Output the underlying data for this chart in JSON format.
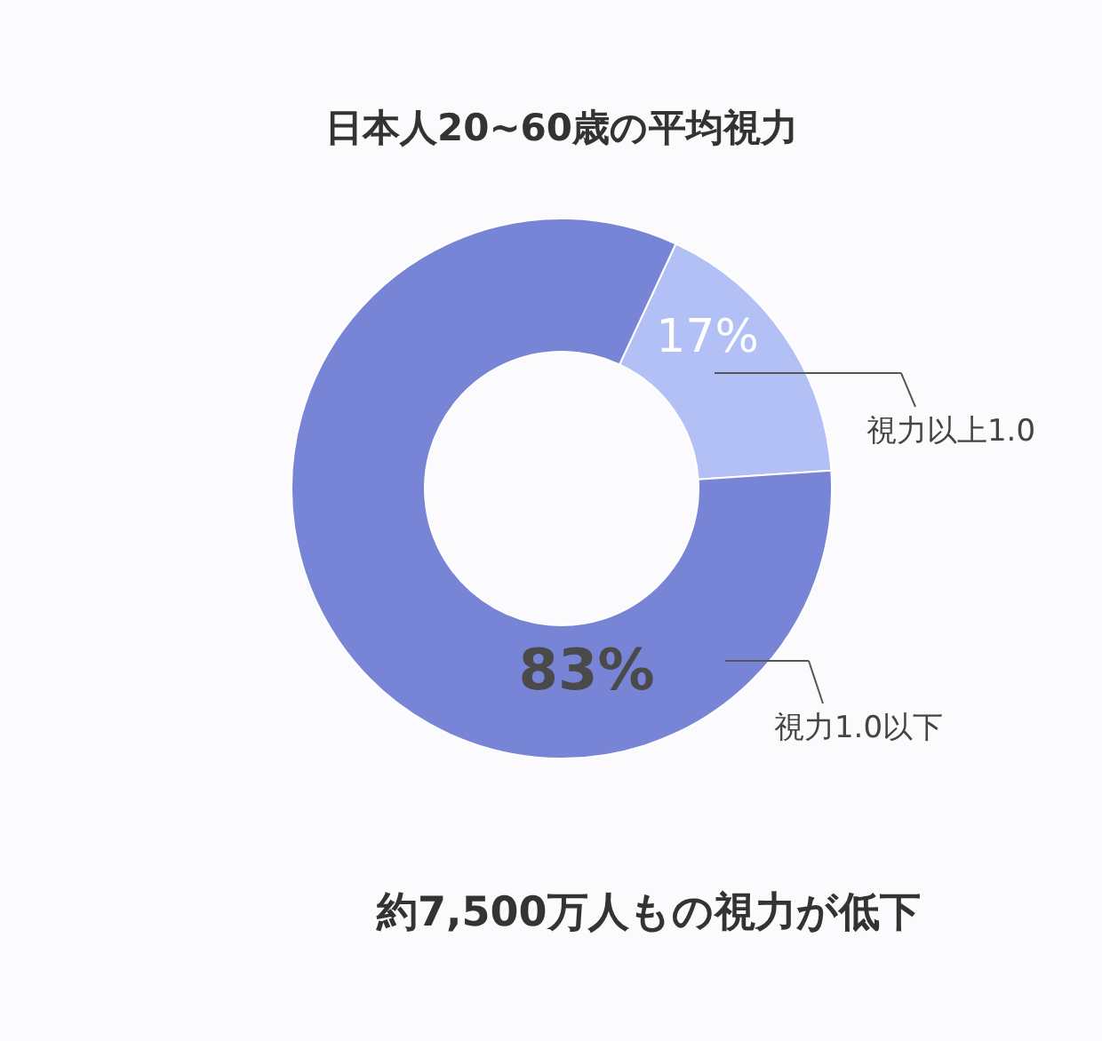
{
  "chart_data": {
    "type": "donut",
    "title": "日本人20~60歳の平均視力",
    "categories": [
      "視力以上1.0",
      "視力1.0以下"
    ],
    "values": [
      17,
      83
    ],
    "colors": [
      "#b3c0f6",
      "#7884d6"
    ],
    "value_labels": [
      "17%",
      "83%"
    ],
    "annotations": [
      "約7,500万人もの視力が低下"
    ]
  }
}
